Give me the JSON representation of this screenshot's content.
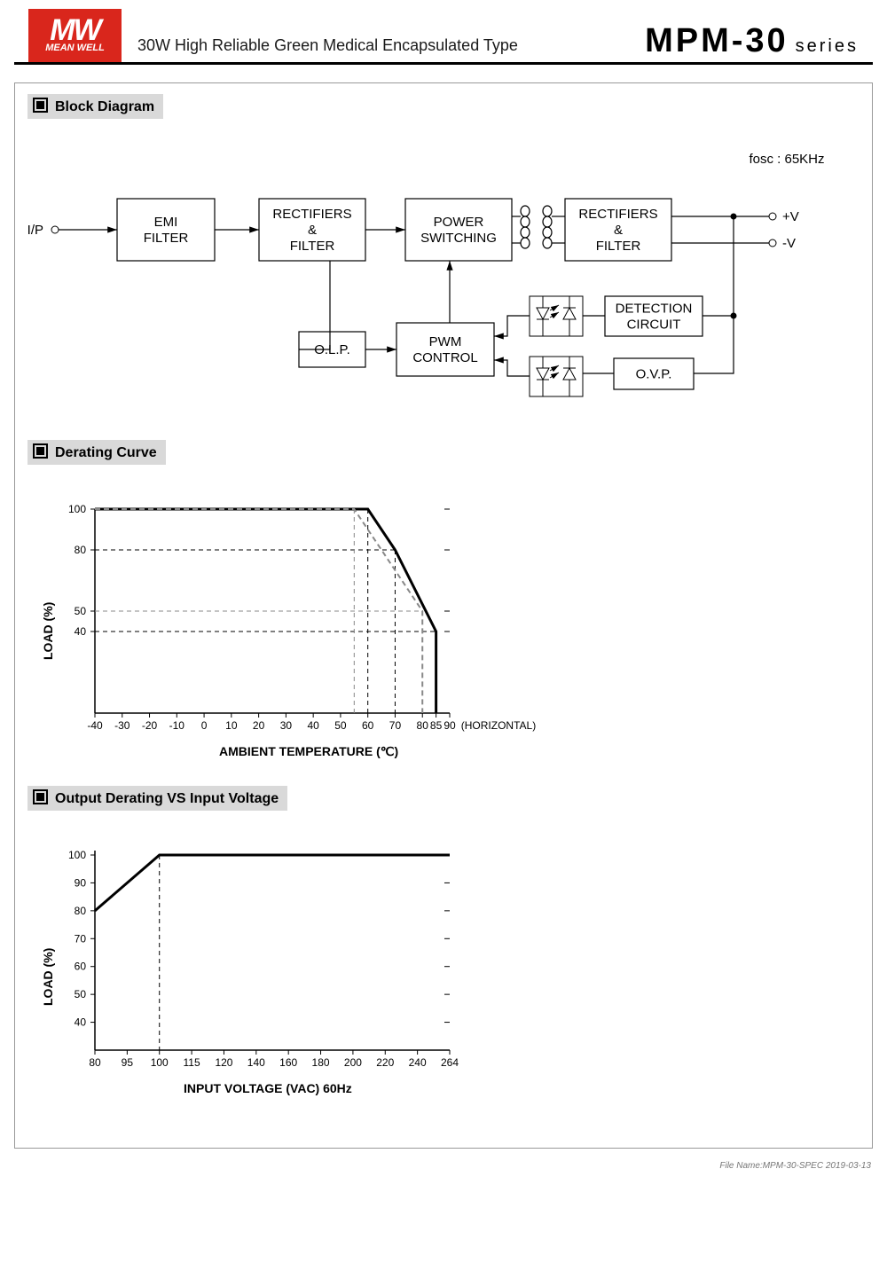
{
  "header": {
    "logo_top": "MW",
    "logo_bottom": "MEAN WELL",
    "subtitle": "30W  High Reliable Green Medical Encapsulated Type",
    "model": "MPM-30",
    "series": "series"
  },
  "sections": {
    "block_diagram": "Block Diagram",
    "derating_curve": "Derating Curve",
    "output_derating": "Output Derating VS Input Voltage"
  },
  "block_diagram": {
    "fosc": "fosc : 65KHz",
    "input_label": "I/P",
    "output_pos": "+V",
    "output_neg": "-V",
    "boxes": {
      "emi": {
        "l1": "EMI",
        "l2": "FILTER"
      },
      "rect1": {
        "l1": "RECTIFIERS",
        "l2": "&",
        "l3": "FILTER"
      },
      "power": {
        "l1": "POWER",
        "l2": "SWITCHING"
      },
      "rect2": {
        "l1": "RECTIFIERS",
        "l2": "&",
        "l3": "FILTER"
      },
      "olp": {
        "l1": "O.L.P."
      },
      "pwm": {
        "l1": "PWM",
        "l2": "CONTROL"
      },
      "detect": {
        "l1": "DETECTION",
        "l2": "CIRCUIT"
      },
      "ovp": {
        "l1": "O.V.P."
      }
    },
    "box_stroke": "#000000",
    "line_stroke": "#000000",
    "font_size": 15
  },
  "derating_chart": {
    "type": "line",
    "ylabel": "LOAD (%)",
    "xlabel": "AMBIENT TEMPERATURE (℃)",
    "x_ticks": [
      -40,
      -30,
      -20,
      -10,
      0,
      10,
      20,
      30,
      40,
      50,
      60,
      70,
      80,
      85,
      90
    ],
    "y_ticks": [
      40,
      50,
      80,
      100
    ],
    "horizontal_label": "(HORIZONTAL)",
    "series": [
      {
        "points": [
          [
            -40,
            100
          ],
          [
            60,
            100
          ],
          [
            70,
            80
          ],
          [
            85,
            40
          ],
          [
            85,
            0
          ]
        ],
        "color": "#000000",
        "width": 3
      },
      {
        "points": [
          [
            -40,
            100
          ],
          [
            55,
            100
          ],
          [
            80,
            50
          ],
          [
            80,
            0
          ]
        ],
        "color": "#888888",
        "width": 2,
        "dash": "6,4"
      }
    ],
    "guide_dash": "5,4",
    "guide_color": "#000000",
    "axis_color": "#000000",
    "font_size": 12,
    "label_font_size": 14,
    "label_weight": "bold"
  },
  "voltage_chart": {
    "type": "line",
    "ylabel": "LOAD (%)",
    "xlabel": "INPUT VOLTAGE (VAC) 60Hz",
    "x_ticks": [
      80,
      95,
      100,
      115,
      120,
      140,
      160,
      180,
      200,
      220,
      240,
      264
    ],
    "y_ticks": [
      40,
      50,
      60,
      70,
      80,
      90,
      100
    ],
    "series": [
      {
        "points": [
          [
            80,
            80
          ],
          [
            100,
            100
          ],
          [
            264,
            100
          ]
        ],
        "color": "#000000",
        "width": 3
      }
    ],
    "guide_x": 100,
    "guide_dash": "5,4",
    "axis_color": "#000000",
    "font_size": 12,
    "label_font_size": 14,
    "label_weight": "bold"
  },
  "footer": {
    "text": "File Name:MPM-30-SPEC   2019-03-13"
  },
  "colors": {
    "bg": "#ffffff",
    "section_bg": "#d9d9d9",
    "logo_bg": "#d9261c"
  }
}
